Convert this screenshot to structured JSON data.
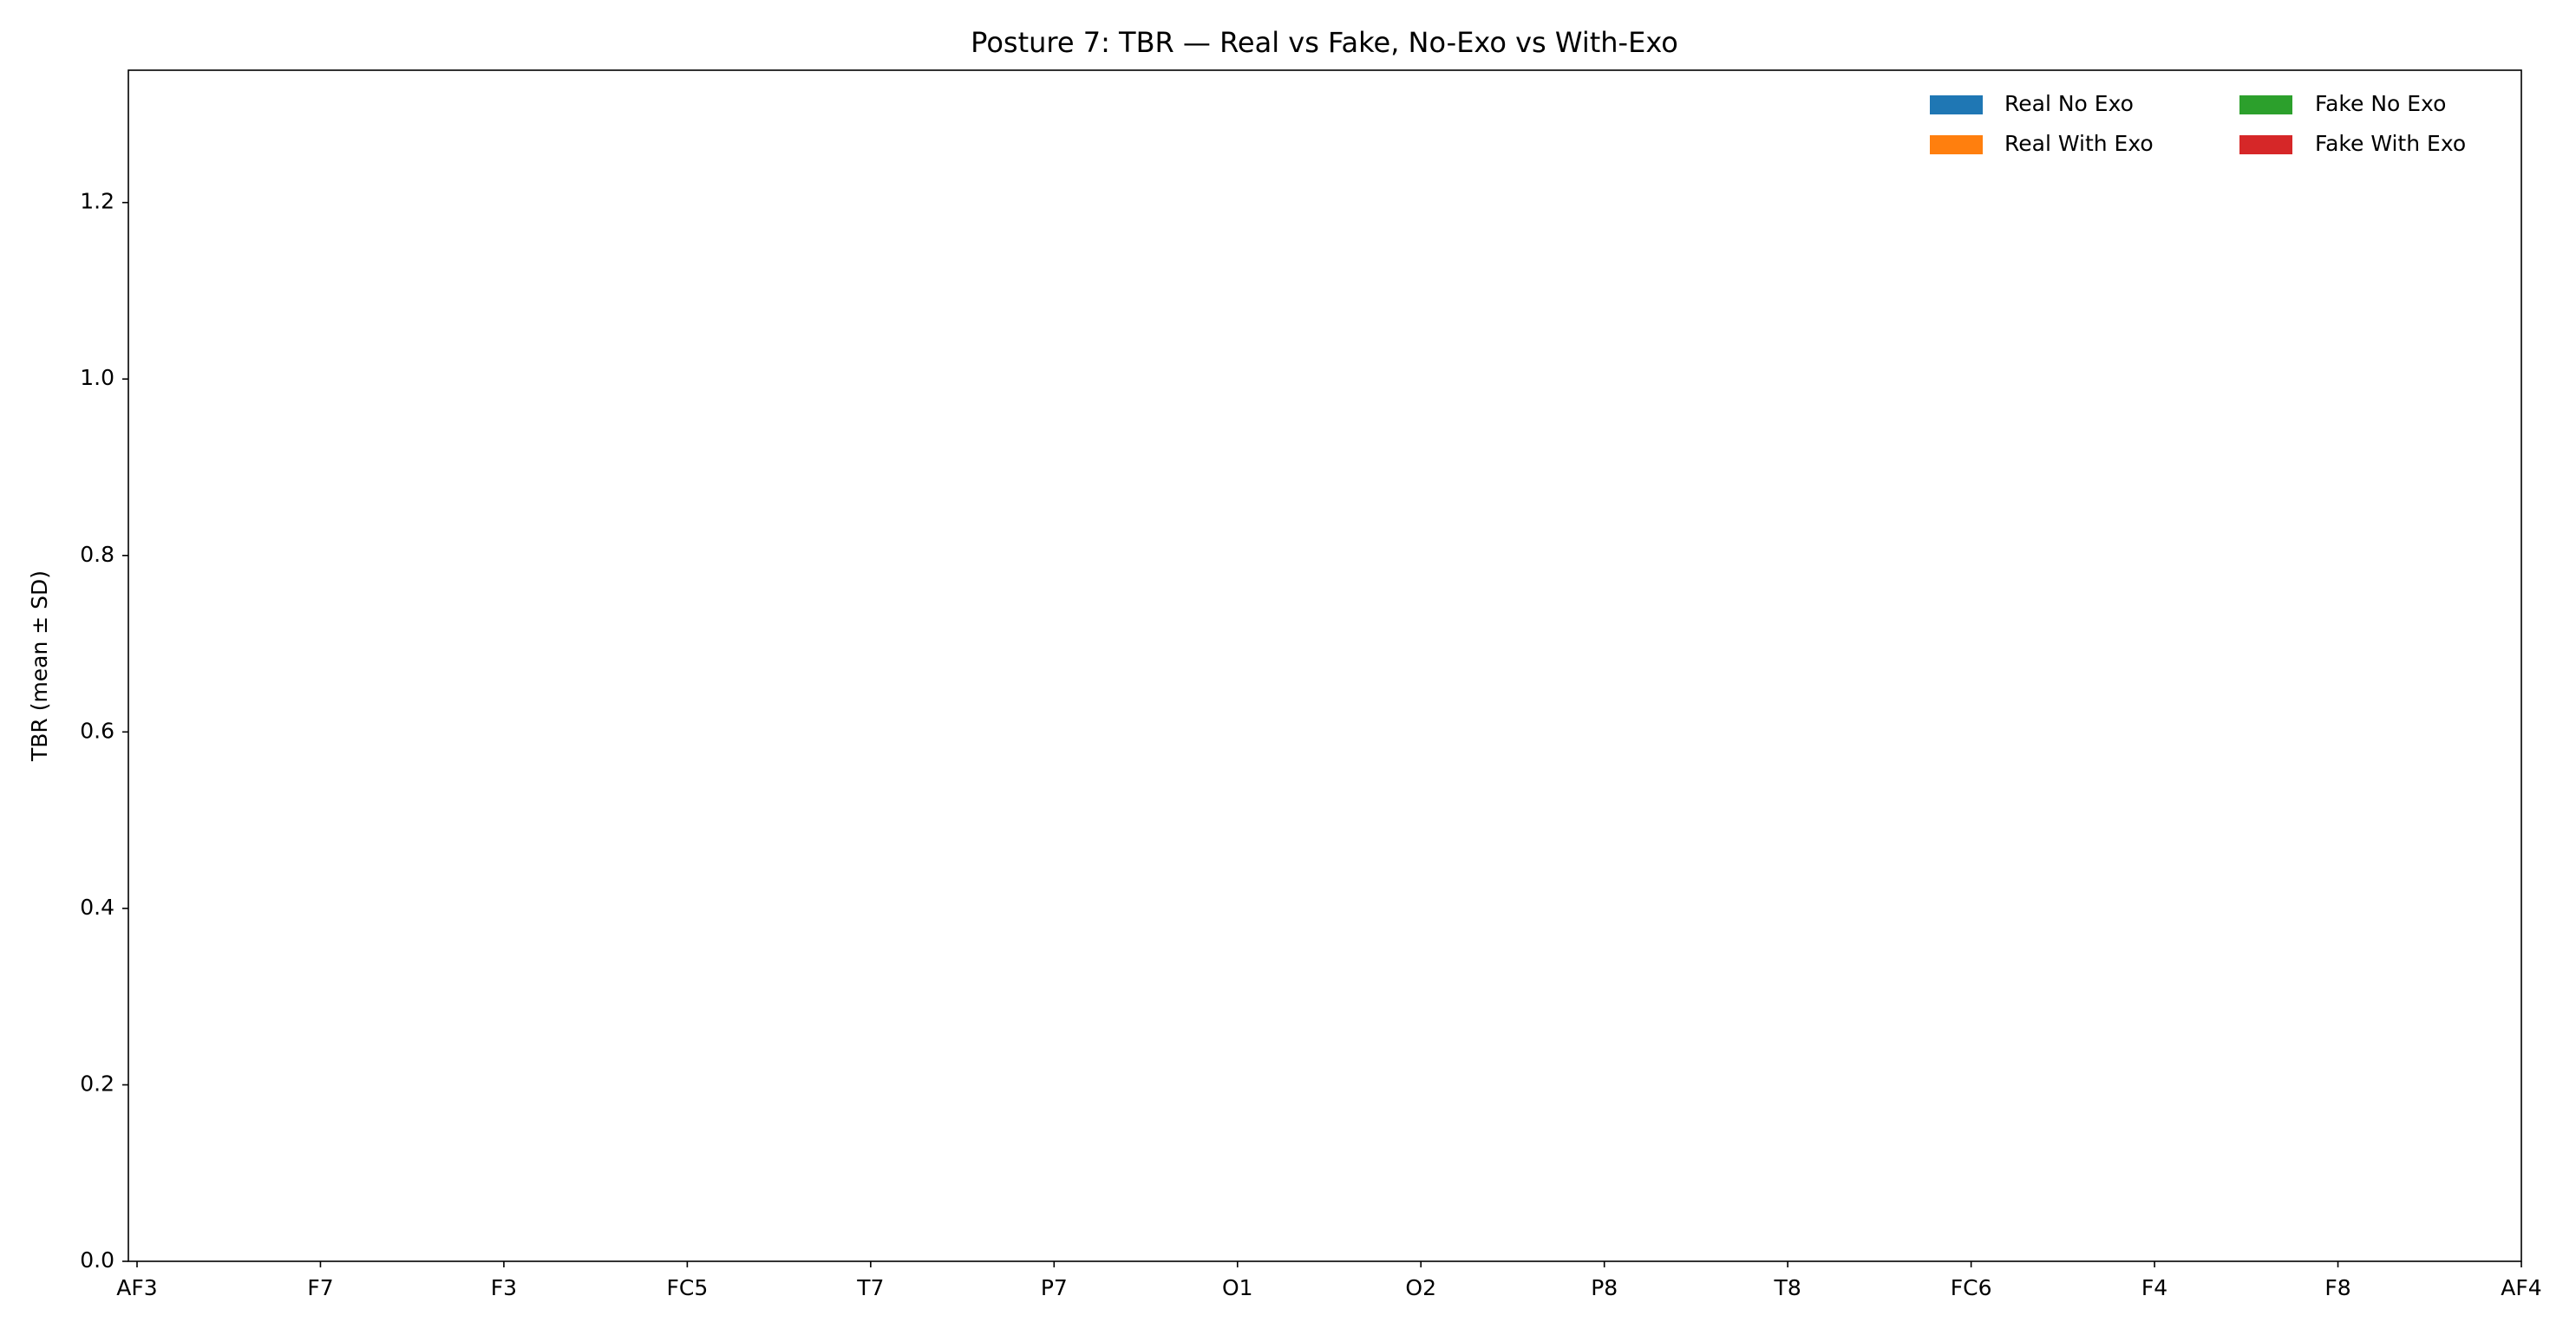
{
  "chart_data": {
    "type": "bar",
    "title": "Posture 7: TBR — Real vs Fake, No-Exo vs With-Exo",
    "y_label": "TBR (mean ± SD)",
    "categories": [
      "AF3",
      "F7",
      "F3",
      "FC5",
      "T7",
      "P7",
      "O1",
      "O2",
      "P8",
      "T8",
      "FC6",
      "F4",
      "F8",
      "AF4"
    ],
    "series": [
      {
        "name": "Real No Exo",
        "color": "#1f77b4",
        "values": [
          null,
          null,
          null,
          null,
          null,
          null,
          null,
          null,
          null,
          null,
          null,
          null,
          null,
          null
        ]
      },
      {
        "name": "Real With Exo",
        "color": "#ff7f0e",
        "values": [
          null,
          null,
          null,
          null,
          null,
          null,
          null,
          null,
          null,
          null,
          null,
          null,
          null,
          null
        ]
      },
      {
        "name": "Fake No Exo",
        "color": "#2ca02c",
        "values": [
          null,
          null,
          null,
          null,
          null,
          null,
          null,
          null,
          null,
          null,
          null,
          null,
          null,
          null
        ]
      },
      {
        "name": "Fake With Exo",
        "color": "#d62728",
        "values": [
          null,
          null,
          null,
          null,
          null,
          null,
          null,
          null,
          null,
          null,
          null,
          null,
          null,
          null
        ]
      }
    ],
    "ylim": [
      0,
      1.35
    ],
    "yticks": [
      {
        "value": 0,
        "label": "0.0"
      },
      0.2,
      0.4,
      0.6,
      0.8,
      {
        "value": 1,
        "label": "1.0"
      },
      1.2
    ],
    "grid": false,
    "legend": "upper right"
  }
}
